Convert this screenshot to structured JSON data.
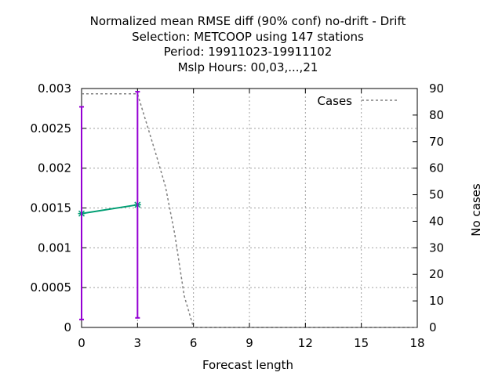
{
  "chart_data": {
    "type": "line",
    "title_lines": [
      "Normalized mean RMSE diff (90% conf) no-drift - Drift",
      "Selection: METCOOP using   147 stations",
      "Period: 19911023-19911102",
      "Mslp   Hours: 00,03,...,21"
    ],
    "xlabel": "Forecast length",
    "ylabel": "",
    "y2label": "No cases",
    "xlim": [
      0,
      18
    ],
    "ylim": [
      0,
      0.003
    ],
    "y2lim": [
      0,
      90
    ],
    "x_ticks": [
      0,
      3,
      6,
      9,
      12,
      15,
      18
    ],
    "x_tick_labels": [
      "0",
      "3",
      "6",
      "9",
      "12",
      "15",
      "18"
    ],
    "y_ticks": [
      0,
      0.0005,
      0.001,
      0.0015,
      0.002,
      0.0025,
      0.003
    ],
    "y_tick_labels": [
      "0",
      "0.0005",
      "0.001",
      "0.0015",
      "0.002",
      "0.0025",
      "0.003"
    ],
    "y2_ticks": [
      0,
      10,
      20,
      30,
      40,
      50,
      60,
      70,
      80,
      90
    ],
    "y2_tick_labels": [
      "0",
      "10",
      "20",
      "30",
      "40",
      "50",
      "60",
      "70",
      "80",
      "90"
    ],
    "grid": true,
    "legend_position": "top-right",
    "series": [
      {
        "color": "#009e73",
        "x": [
          0,
          3
        ],
        "y": [
          0.00143,
          0.00154
        ]
      },
      {
        "name": "Cases",
        "axis": "y2",
        "style": "dashed",
        "color": "#808080",
        "x": [
          0,
          3,
          4,
          4.5,
          5,
          5.5,
          6,
          9,
          12,
          15,
          18
        ],
        "y": [
          88,
          88,
          65,
          53,
          35,
          12,
          0,
          0,
          0,
          0,
          0
        ]
      }
    ],
    "error_bars": {
      "color": "#9400d3",
      "x": [
        0,
        3
      ],
      "lower": [
        0.0001,
        0.00012
      ],
      "upper": [
        0.00277,
        0.00296
      ]
    }
  }
}
